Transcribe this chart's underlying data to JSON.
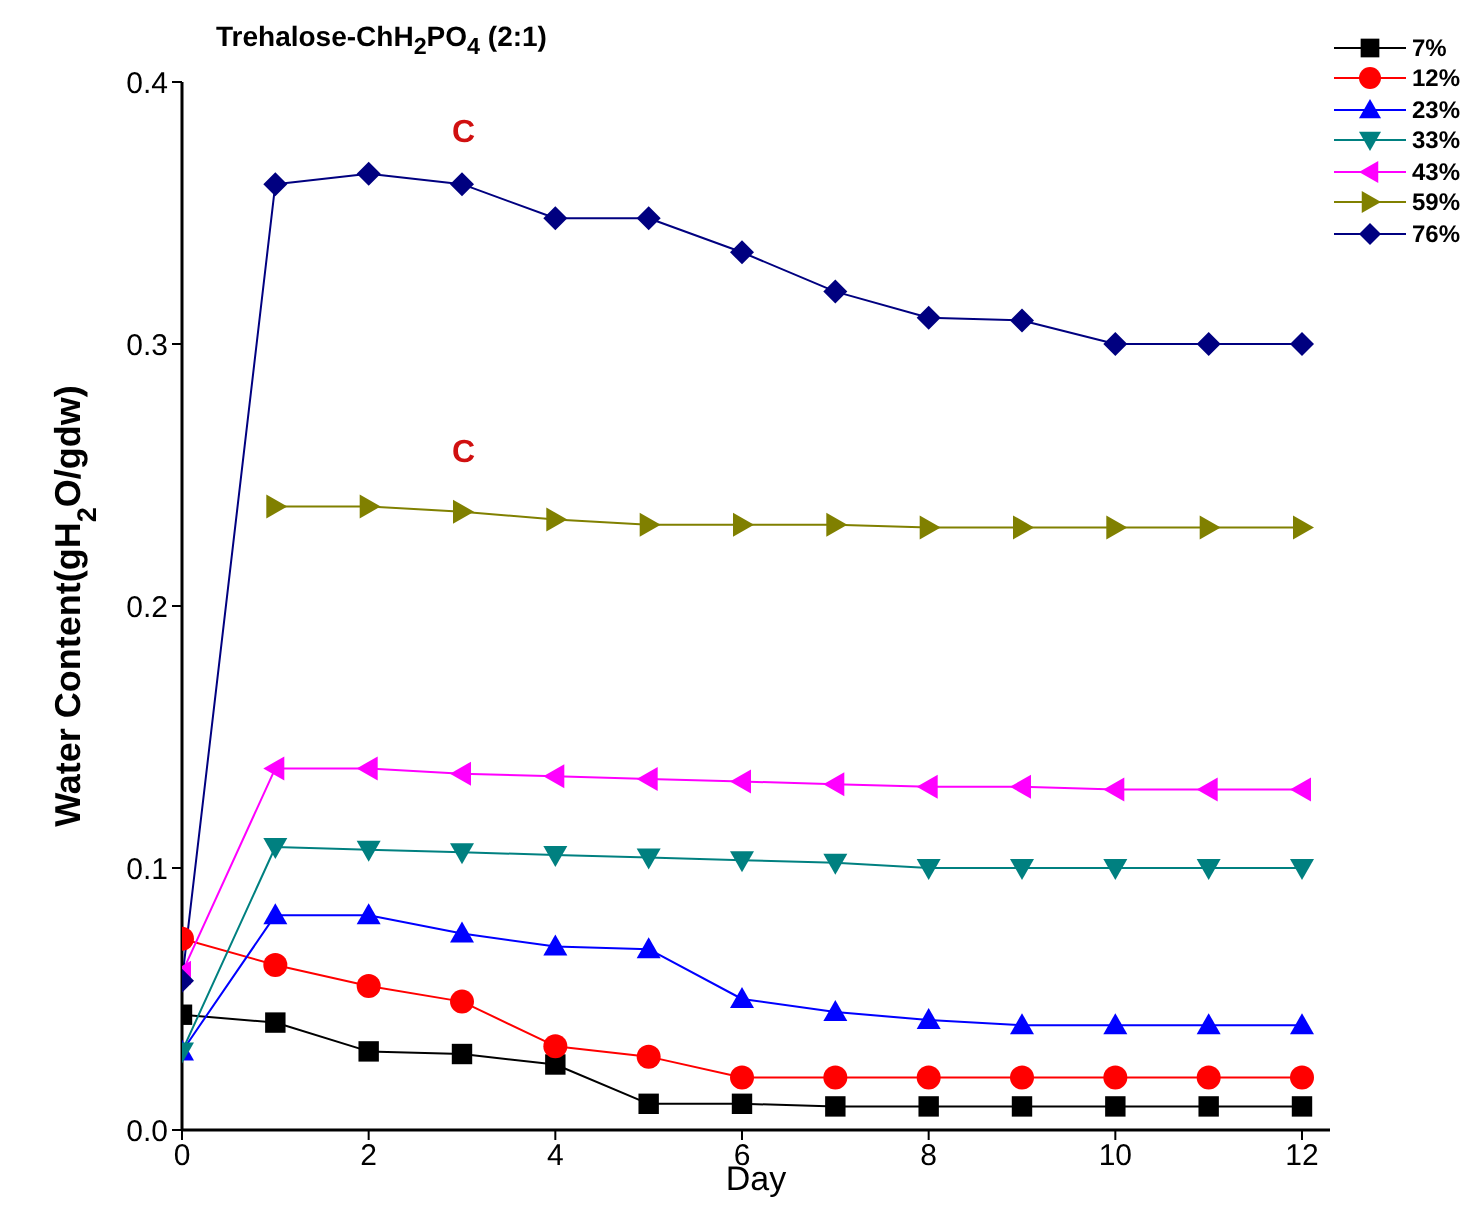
{
  "chart_data": {
    "type": "line",
    "title": "Trehalose-ChH$_{2}$PO$_{4}$ (2:1)",
    "xlabel": "Day",
    "ylabel": "Water Content(gH$_{2}$O/gdw)",
    "x": [
      0,
      1,
      2,
      3,
      4,
      5,
      6,
      7,
      8,
      9,
      10,
      11,
      12
    ],
    "xlim": [
      0,
      12.3
    ],
    "xticks": [
      0,
      2,
      4,
      6,
      8,
      10,
      12
    ],
    "ylim": [
      0,
      0.4
    ],
    "yticks": [
      {
        "value": 0,
        "label": "0.0"
      },
      {
        "value": 0.1,
        "label": "0.1"
      },
      {
        "value": 0.2,
        "label": "0.2"
      },
      {
        "value": 0.3,
        "label": "0.3"
      },
      {
        "value": 0.4,
        "label": "0.4"
      }
    ],
    "legend": "top right",
    "line_style": "solid",
    "series": [
      {
        "name": "7%",
        "color": "#000000",
        "marker": "square",
        "values": [
          0.044,
          0.041,
          0.03,
          0.029,
          0.025,
          0.01,
          0.01,
          0.009,
          0.009,
          0.009,
          0.009,
          0.009,
          0.009
        ]
      },
      {
        "name": "12%",
        "color": "#ff0000",
        "marker": "circle",
        "values": [
          0.073,
          0.063,
          0.055,
          0.049,
          0.032,
          0.028,
          0.02,
          0.02,
          0.02,
          0.02,
          0.02,
          0.02,
          0.02
        ]
      },
      {
        "name": "23%",
        "color": "#0000ff",
        "marker": "triangle",
        "values": [
          0.03,
          0.082,
          0.082,
          0.075,
          0.07,
          0.069,
          0.05,
          0.045,
          0.042,
          0.04,
          0.04,
          0.04,
          0.04
        ]
      },
      {
        "name": "33%",
        "color": "#008080",
        "marker": "triangle-down",
        "values": [
          0.03,
          0.108,
          0.107,
          0.106,
          0.105,
          0.104,
          0.103,
          0.102,
          0.1,
          0.1,
          0.1,
          0.1,
          0.1
        ]
      },
      {
        "name": "43%",
        "color": "#ff00ff",
        "marker": "triangle-left",
        "values": [
          0.06,
          0.138,
          0.138,
          0.136,
          0.135,
          0.134,
          0.133,
          0.132,
          0.131,
          0.131,
          0.13,
          0.13,
          0.13
        ]
      },
      {
        "name": "59%",
        "color": "#808000",
        "marker": "triangle-right",
        "values": [
          null,
          0.238,
          0.238,
          0.236,
          0.233,
          0.231,
          0.231,
          0.231,
          0.23,
          0.23,
          0.23,
          0.23,
          0.23
        ]
      },
      {
        "name": "76%",
        "color": "#000080",
        "marker": "diamond",
        "values": [
          0.057,
          0.361,
          0.365,
          0.361,
          0.348,
          0.348,
          0.335,
          0.32,
          0.31,
          0.309,
          0.3,
          0.3,
          0.3
        ]
      }
    ],
    "annotations": [
      "C",
      "C"
    ]
  }
}
